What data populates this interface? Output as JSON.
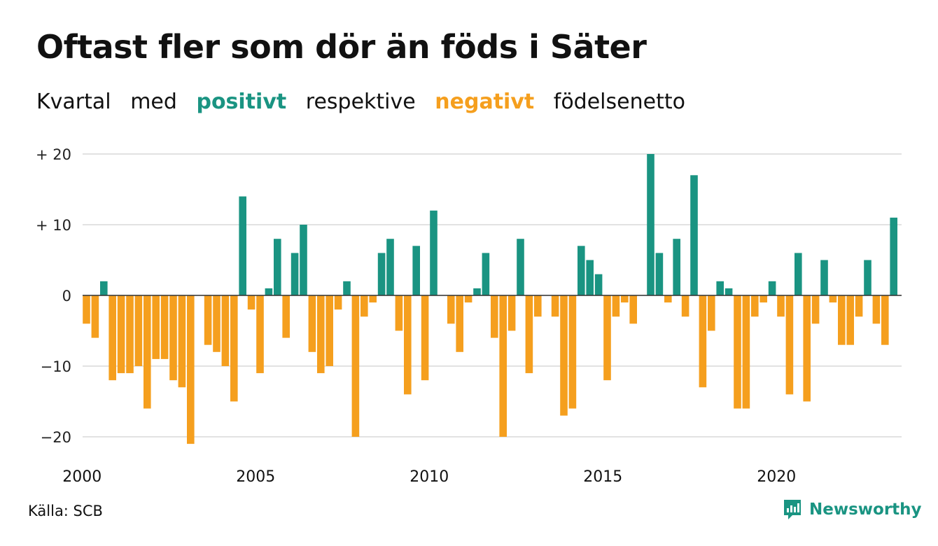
{
  "header": {
    "title": "Oftast fler som dör än föds i Säter",
    "subtitle": {
      "w1": "Kvartal",
      "w2": "med",
      "pos": "positivt",
      "w3": "respektive",
      "neg": "negativt",
      "w4": "födelsenetto"
    }
  },
  "footer": {
    "source": "Källa: SCB",
    "brand": "Newsworthy"
  },
  "colors": {
    "positive": "#1a9482",
    "negative": "#f59f1e",
    "grid": "#d9d9d9",
    "axis": "#333333"
  },
  "chart_data": {
    "type": "bar",
    "x_start": "2000 Q1",
    "values": [
      -4,
      -6,
      2,
      -12,
      -11,
      -11,
      -10,
      -16,
      -9,
      -9,
      -12,
      -13,
      -21,
      0,
      -7,
      -8,
      -10,
      -15,
      14,
      -2,
      -11,
      1,
      8,
      -6,
      6,
      10,
      -8,
      -11,
      -10,
      -2,
      2,
      -20,
      -3,
      -1,
      6,
      8,
      -5,
      -14,
      7,
      -12,
      12,
      0,
      -4,
      -8,
      -1,
      1,
      6,
      -6,
      -20,
      -5,
      8,
      -11,
      -3,
      0,
      -3,
      -17,
      -16,
      7,
      5,
      3,
      -12,
      -3,
      -1,
      -4,
      0,
      20,
      6,
      -1,
      8,
      -3,
      17,
      -13,
      -5,
      2,
      1,
      -16,
      -16,
      -3,
      -1,
      2,
      -3,
      -14,
      6,
      -15,
      -4,
      5,
      -1,
      -7,
      -7,
      -3,
      5,
      -4,
      -7,
      11
    ],
    "yticks": [
      20,
      10,
      0,
      -10,
      -20
    ],
    "ytick_labels": [
      "+ 20",
      "+ 10",
      "0",
      "−10",
      "−20"
    ],
    "xticks": [
      2000,
      2005,
      2010,
      2015,
      2020
    ],
    "xtick_labels": [
      "2000",
      "2005",
      "2010",
      "2015",
      "2020"
    ],
    "ylim": [
      -21,
      20
    ],
    "grid": true
  }
}
